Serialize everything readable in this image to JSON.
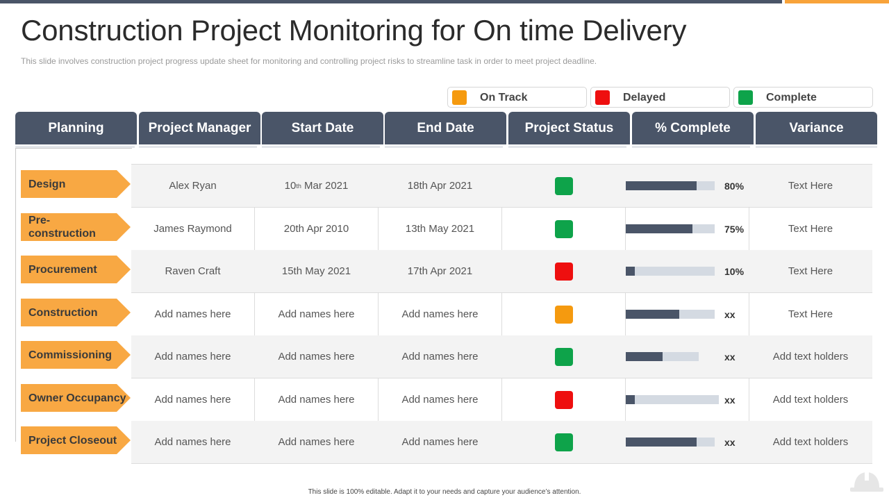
{
  "title": "Construction Project Monitoring for On time Delivery",
  "subtitle": "This slide involves  construction project progress update sheet for monitoring and controlling project risks to streamline task in order to meet project deadline.",
  "legend": [
    {
      "label": "On Track",
      "color": "#f59a0f"
    },
    {
      "label": "Delayed",
      "color": "#ee0f0f"
    },
    {
      "label": "Complete",
      "color": "#0ea34a"
    }
  ],
  "headers": [
    "Planning",
    "Project Manager",
    "Start Date",
    "End Date",
    "Project Status",
    "% Complete",
    "Variance"
  ],
  "rows": [
    {
      "phase": "Design",
      "manager": "Alex Ryan",
      "start_day": "10",
      "start_suffix": "th",
      "start_rest": " Mar 2021",
      "end": "18th Apr 2021",
      "status": "complete",
      "progress": 0.8,
      "pct_label": "80%",
      "variance": "Text Here"
    },
    {
      "phase": "Pre-\nconstruction",
      "manager": "James Raymond",
      "start_day": "20th Apr 2010",
      "start_suffix": "",
      "start_rest": "",
      "end": "13th May 2021",
      "status": "complete",
      "progress": 0.75,
      "pct_label": "75%",
      "variance": "Text Here"
    },
    {
      "phase": "Procurement",
      "manager": "Raven Craft",
      "start_day": "15th May 2021",
      "start_suffix": "",
      "start_rest": "",
      "end": "17th Apr 2021",
      "status": "delayed",
      "progress": 0.1,
      "pct_label": "10%",
      "variance": "Text Here"
    },
    {
      "phase": "Construction",
      "manager": "Add names here",
      "start_day": "Add names here",
      "start_suffix": "",
      "start_rest": "",
      "end": "Add names here",
      "status": "ontrack",
      "progress": 0.6,
      "pct_label": "xx",
      "variance": "Text Here"
    },
    {
      "phase": "Commissioning",
      "manager": "Add names here",
      "start_day": "Add names here",
      "start_suffix": "",
      "start_rest": "",
      "end": "Add names here",
      "status": "complete",
      "progress": 0.5,
      "pct_label": "xx",
      "variance": "Add text holders"
    },
    {
      "phase": "Owner Occupancy",
      "manager": "Add names here",
      "start_day": "Add names here",
      "start_suffix": "",
      "start_rest": "",
      "end": "Add names here",
      "status": "delayed",
      "progress": 0.1,
      "pct_label": "xx",
      "variance": "Add text holders"
    },
    {
      "phase": "Project Closeout",
      "manager": "Add names here",
      "start_day": "Add names here",
      "start_suffix": "",
      "start_rest": "",
      "end": "Add names here",
      "status": "complete",
      "progress": 0.8,
      "pct_label": "xx",
      "variance": "Add text holders"
    }
  ],
  "footer": "This slide is 100% editable.  Adapt it to your needs and capture your audience’s attention.",
  "colors": {
    "header": "#4a5568",
    "phase": "#f8a843",
    "bar_fill": "#4a5568",
    "bar_track": "#d4dae2"
  }
}
